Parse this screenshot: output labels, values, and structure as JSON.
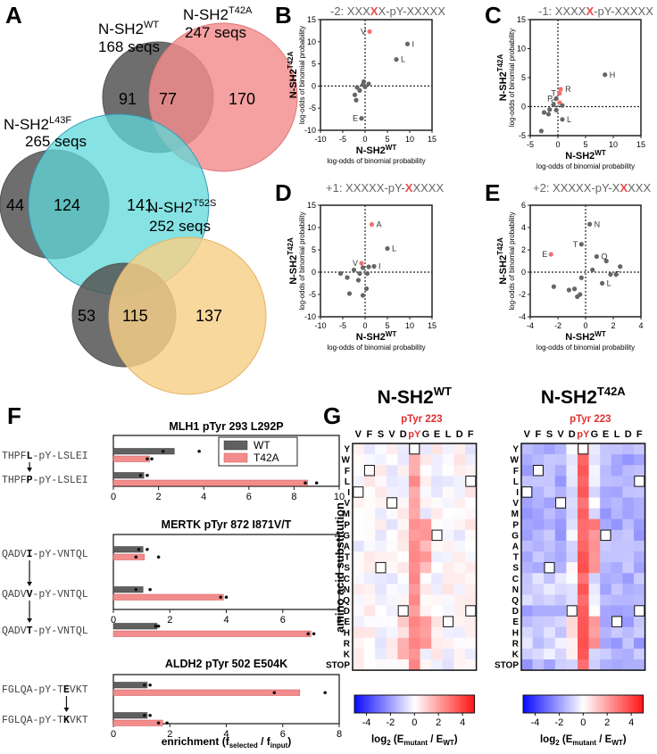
{
  "panelA": {
    "label": "A",
    "venn": [
      {
        "name_base": "N-SH2",
        "name_sup": "WT",
        "seqs": "168 seqs",
        "left_only": "91",
        "overlap": "77",
        "right_only": "170",
        "other_base": "N-SH2",
        "other_sup": "T42A",
        "other_seqs": "247 seqs",
        "color": "#f38c8c"
      },
      {
        "name_base": "N-SH2",
        "name_sup": "L43F",
        "seqs": "265 seqs",
        "left_only": "44",
        "overlap": "124",
        "right_only": "141",
        "color": "#5fdada"
      },
      {
        "name_base": "N-SH2",
        "name_sup": "T52S",
        "seqs": "252 seqs",
        "left_only": "53",
        "overlap": "115",
        "right_only": "137",
        "color": "#f7cf86"
      }
    ]
  },
  "scatter_common": {
    "xlabel_base": "N-SH2",
    "xlabel_sup": "WT",
    "ylabel_base": "N-SH2",
    "ylabel_sup": "T42A",
    "axis_sub": "log-odds of binomial probability"
  },
  "chart_data": [
    {
      "id": "B",
      "type": "scatter",
      "label": "B",
      "title_pre": "-2: XXX",
      "title_x": "X",
      "title_post": "X-pY-XXXXX",
      "xlim": [
        -10,
        15
      ],
      "ylim": [
        -10,
        15
      ],
      "xticks": [
        "-10",
        "-5",
        "0",
        "5",
        "10",
        "15"
      ],
      "yticks": [
        "-10",
        "-5",
        "0",
        "5",
        "10",
        "15"
      ],
      "points": [
        {
          "x": 1,
          "y": 12.3,
          "label": "V",
          "red": true
        },
        {
          "x": 9.5,
          "y": 9.5,
          "label": "I"
        },
        {
          "x": 7,
          "y": 6,
          "label": "L"
        },
        {
          "x": -0.8,
          "y": -7.3,
          "label": "E"
        },
        {
          "x": -1.8,
          "y": -0.3
        },
        {
          "x": -2.3,
          "y": -2
        },
        {
          "x": -1.2,
          "y": -1
        },
        {
          "x": -0.5,
          "y": 0.3
        },
        {
          "x": 0,
          "y": -0.2
        },
        {
          "x": 0.8,
          "y": 0.5
        },
        {
          "x": -2,
          "y": -3.2
        },
        {
          "x": -0.3,
          "y": 1
        }
      ]
    },
    {
      "id": "C",
      "type": "scatter",
      "label": "C",
      "title_pre": "-1: XXXX",
      "title_x": "X",
      "title_post": "-pY-XXXXX",
      "xlim": [
        -5,
        15
      ],
      "ylim": [
        -5,
        15
      ],
      "xticks": [
        "-5",
        "0",
        "5",
        "10",
        "15"
      ],
      "yticks": [
        "-5",
        "0",
        "5",
        "10",
        "15"
      ],
      "points": [
        {
          "x": 8.5,
          "y": 5.5,
          "label": "H"
        },
        {
          "x": 0.5,
          "y": 3,
          "label": "R",
          "red": true
        },
        {
          "x": 0.3,
          "y": 2.3,
          "label": "T",
          "red": true
        },
        {
          "x": -0.3,
          "y": 1.4,
          "label": "P"
        },
        {
          "x": 0.3,
          "y": 0.7,
          "label": "S",
          "red": true
        },
        {
          "x": 0.8,
          "y": -2.2,
          "label": "L"
        },
        {
          "x": -3,
          "y": -4.2
        },
        {
          "x": -2.5,
          "y": -1
        },
        {
          "x": -1.5,
          "y": -0.5
        },
        {
          "x": -0.8,
          "y": 0.3
        },
        {
          "x": -0.3,
          "y": -0.6
        },
        {
          "x": 0.8,
          "y": 0.2
        },
        {
          "x": -1.7,
          "y": -1.3
        }
      ]
    },
    {
      "id": "D",
      "type": "scatter",
      "label": "D",
      "title_pre": "+1: XXXXX-pY-",
      "title_x": "X",
      "title_post": "XXXX",
      "xlim": [
        -10,
        15
      ],
      "ylim": [
        -10,
        15
      ],
      "xticks": [
        "-10",
        "-5",
        "0",
        "5",
        "10",
        "15"
      ],
      "yticks": [
        "-10",
        "-5",
        "0",
        "5",
        "10",
        "15"
      ],
      "points": [
        {
          "x": 1.5,
          "y": 10.7,
          "label": "A",
          "red": true
        },
        {
          "x": 5,
          "y": 5.3,
          "label": "L"
        },
        {
          "x": -0.8,
          "y": 2,
          "label": "V",
          "red": true
        },
        {
          "x": 2,
          "y": 1.3,
          "label": "I"
        },
        {
          "x": -5.5,
          "y": -0.3
        },
        {
          "x": -4,
          "y": -1.2
        },
        {
          "x": -3.5,
          "y": -4.8
        },
        {
          "x": -2.5,
          "y": 0.5
        },
        {
          "x": -1.5,
          "y": -1.8
        },
        {
          "x": -0.5,
          "y": 1
        },
        {
          "x": 0.5,
          "y": -0.3
        },
        {
          "x": 0.8,
          "y": 1.2
        },
        {
          "x": 0.3,
          "y": -3.7
        },
        {
          "x": -0.5,
          "y": -5.2
        },
        {
          "x": -1.2,
          "y": -0.3
        }
      ]
    },
    {
      "id": "E",
      "type": "scatter",
      "label": "E",
      "title_pre": "+2: XXXXX-pY-X",
      "title_x": "X",
      "title_post": "XXX",
      "xlim": [
        -4,
        4
      ],
      "ylim": [
        -4,
        6
      ],
      "xticks": [
        "-4",
        "-2",
        "0",
        "2",
        "4"
      ],
      "yticks": [
        "-4",
        "-2",
        "0",
        "2",
        "4",
        "6"
      ],
      "points": [
        {
          "x": 0.3,
          "y": 4.3,
          "label": "N"
        },
        {
          "x": -0.3,
          "y": 2.5,
          "label": "T"
        },
        {
          "x": 0.8,
          "y": 1.4,
          "label": "Q"
        },
        {
          "x": -2.5,
          "y": 1.6,
          "label": "E",
          "red": true
        },
        {
          "x": 1.8,
          "y": -0.2,
          "label": "F"
        },
        {
          "x": 1.2,
          "y": -1,
          "label": "L"
        },
        {
          "x": -2.3,
          "y": -1.3
        },
        {
          "x": -1.2,
          "y": -1.6
        },
        {
          "x": -0.8,
          "y": -1.5
        },
        {
          "x": -0.4,
          "y": -2
        },
        {
          "x": -0.6,
          "y": -2.2
        },
        {
          "x": -0.3,
          "y": -0.5
        },
        {
          "x": 0.5,
          "y": 0.2
        },
        {
          "x": 1.5,
          "y": 1
        },
        {
          "x": 2.2,
          "y": -0.2
        },
        {
          "x": 2.5,
          "y": 0.5
        }
      ]
    },
    {
      "id": "F",
      "type": "bar",
      "label": "F",
      "legend": [
        "WT",
        "T42A"
      ],
      "colors": [
        "#606060",
        "#f38c8c"
      ],
      "xlabel_base": "enrichment (f",
      "xlabel_sub1": "selected",
      "xlabel_mid": " / f",
      "xlabel_sub2": "input",
      "xlabel_end": ")",
      "groups": [
        {
          "title": "MLH1 pTyr 293 L292P",
          "xlim": [
            0,
            10
          ],
          "xticks": [
            "0",
            "2",
            "4",
            "6",
            "8",
            "10"
          ],
          "rows": [
            {
              "pre": "THPF",
              "bold": "L",
              "post": "-pY-LSLEI",
              "wt": 2.7,
              "t42a": 1.6,
              "wt_dots": [
                2.2,
                3.8
              ],
              "t42a_dots": [
                1.5,
                1.7
              ]
            },
            {
              "pre": "THPF",
              "bold": "P",
              "post": "-pY-LSLEI",
              "wt": 1.35,
              "t42a": 8.6,
              "wt_dots": [
                1.2,
                1.5
              ],
              "t42a_dots": [
                8.5,
                9.0
              ]
            }
          ]
        },
        {
          "title": "MERTK pTyr 872 I871V/T",
          "xlim": [
            0,
            8
          ],
          "xticks": [
            "0",
            "2",
            "4",
            "6",
            "8"
          ],
          "rows": [
            {
              "pre": "QADV",
              "bold": "I",
              "post": "-pY-VNTQL",
              "wt": 1.05,
              "t42a": 1.1,
              "wt_dots": [
                0.9,
                1.2
              ],
              "t42a_dots": [
                0.8,
                1.6
              ]
            },
            {
              "pre": "QADV",
              "bold": "V",
              "post": "-pY-VNTQL",
              "wt": 1.05,
              "t42a": 3.9,
              "wt_dots": [
                0.8,
                1.3
              ],
              "t42a_dots": [
                3.8,
                4.0
              ]
            },
            {
              "pre": "QADV",
              "bold": "T",
              "post": "-pY-VNTQL",
              "wt": 1.55,
              "t42a": 7.0,
              "wt_dots": [
                1.5,
                1.6
              ],
              "t42a_dots": [
                6.9,
                7.1
              ]
            }
          ]
        },
        {
          "title": "ALDH2 pTyr 502 E504K",
          "xlim": [
            0,
            8
          ],
          "xticks": [
            "0",
            "2",
            "4",
            "6",
            "8"
          ],
          "rows": [
            {
              "pre": "FGLQA-pY-T",
              "bold": "E",
              "post": "VKT",
              "wt": 1.2,
              "t42a": 6.6,
              "wt_dots": [
                1.1,
                1.3
              ],
              "t42a_dots": [
                5.7,
                7.5
              ]
            },
            {
              "pre": "FGLQA-pY-T",
              "bold": "K",
              "post": "VKT",
              "wt": 1.2,
              "t42a": 1.75,
              "wt_dots": [
                1.1,
                1.3
              ],
              "t42a_dots": [
                1.6,
                1.9
              ]
            }
          ]
        }
      ]
    },
    {
      "id": "G",
      "type": "heatmap",
      "label": "G",
      "title_base": "N-SH2",
      "titles_sup": [
        "WT",
        "T42A"
      ],
      "subtitle": "pTyr 223",
      "positions": [
        "V",
        "F",
        "S",
        "V",
        "D",
        "pY",
        "G",
        "E",
        "L",
        "D",
        "F"
      ],
      "rows": [
        "Y",
        "W",
        "F",
        "L",
        "I",
        "V",
        "M",
        "P",
        "G",
        "A",
        "T",
        "S",
        "C",
        "N",
        "Q",
        "D",
        "E",
        "H",
        "R",
        "K",
        "STOP"
      ],
      "ylabel": "amino acid substitution",
      "colorbar_ticks": [
        "-4",
        "-2",
        "0",
        "2",
        "4"
      ],
      "clim": [
        -5,
        5
      ],
      "cbar_label_base": "log",
      "cbar_label_sub": "2",
      "cbar_label_rest": " (E",
      "cbar_sub1": "mutant",
      "cbar_mid": " / E",
      "cbar_sub2": "WT",
      "cbar_end": ")",
      "wt_cells": [
        [
          0,
          5
        ],
        [
          2,
          1
        ],
        [
          3,
          10
        ],
        [
          4,
          0
        ],
        [
          5,
          3
        ],
        [
          8,
          7
        ],
        [
          11,
          2
        ],
        [
          15,
          4
        ],
        [
          15,
          10
        ],
        [
          16,
          8
        ]
      ]
    }
  ]
}
